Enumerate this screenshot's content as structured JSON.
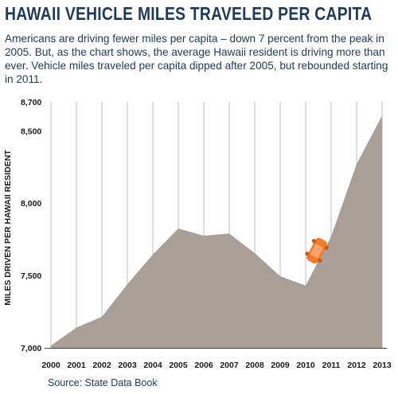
{
  "chart_data": {
    "type": "area",
    "title": "HAWAII VEHICLE MILES TRAVELED PER CAPITA",
    "subtitle": "Americans are driving fewer miles per capita – down 7 percent from the peak in 2005. But, as the chart shows, the average Hawaii resident is driving more than ever. Vehicle miles traveled per capita dipped after 2005, but rebounded starting in 2011.",
    "ylabel": "MILES DRIVEN PER HAWAII RESIDENT",
    "xlabel": "",
    "source": "Source: State Data Book",
    "x": [
      "2000",
      "2001",
      "2002",
      "2003",
      "2004",
      "2005",
      "2006",
      "2007",
      "2008",
      "2009",
      "2010",
      "2011",
      "2012",
      "2013"
    ],
    "values": [
      7015,
      7140,
      7215,
      7440,
      7645,
      7825,
      7775,
      7790,
      7655,
      7495,
      7430,
      7770,
      8270,
      8605
    ],
    "y_ticks": [
      {
        "value": 7000,
        "label": "7,000"
      },
      {
        "value": 7500,
        "label": "7,500"
      },
      {
        "value": 8000,
        "label": "8,000"
      },
      {
        "value": 8500,
        "label": "8,500"
      },
      {
        "value": 8700,
        "label": "8,700"
      }
    ],
    "ylim": [
      7000,
      8700
    ],
    "grid": true,
    "legend": "none",
    "colors": {
      "area": "#a79f98",
      "grid": "#c8c8c8",
      "car": "#f07d2a"
    }
  }
}
